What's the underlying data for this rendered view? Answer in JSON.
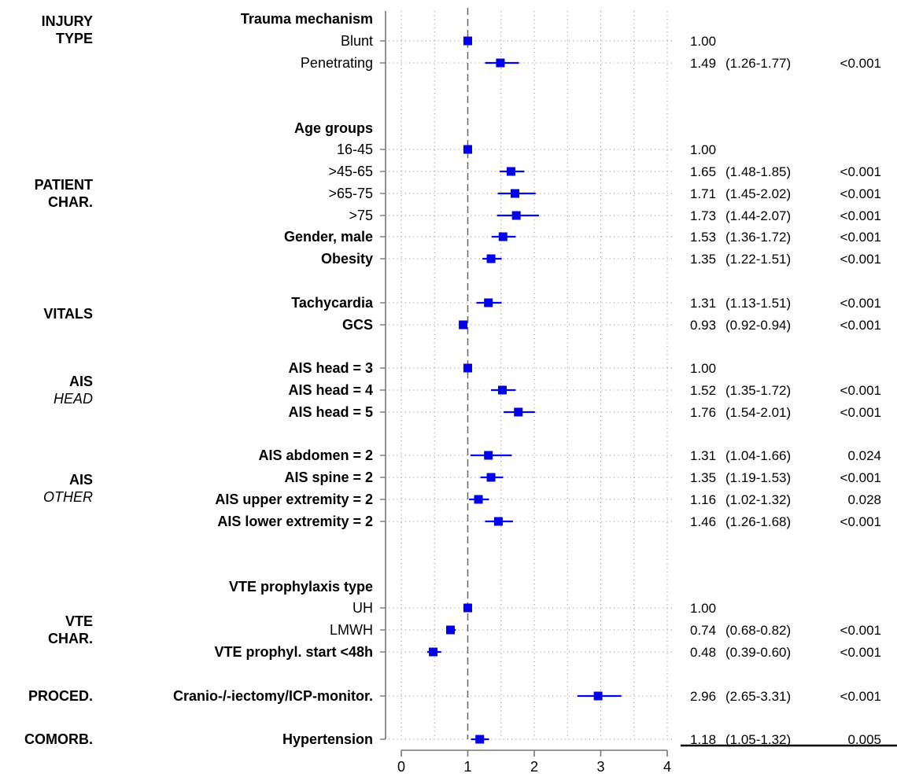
{
  "chart_data": {
    "type": "forest",
    "title": "",
    "xlabel": "",
    "ylabel": "",
    "xlim": [
      0,
      4
    ],
    "xticks": [
      "0",
      "1",
      "2",
      "3",
      "4"
    ],
    "reference_line": 1,
    "grid": "dotted",
    "marker_color": "#0000ee",
    "groups": [
      {
        "lines": [
          {
            "text": "INJURY",
            "italic": false
          },
          {
            "text": "TYPE",
            "italic": false
          }
        ],
        "row_span": [
          0,
          1
        ]
      },
      {
        "lines": [
          {
            "text": "PATIENT",
            "italic": false
          },
          {
            "text": "CHAR.",
            "italic": false
          }
        ],
        "row_span": [
          3,
          9
        ]
      },
      {
        "lines": [
          {
            "text": "VITALS",
            "italic": false
          }
        ],
        "row_span": [
          10,
          11
        ]
      },
      {
        "lines": [
          {
            "text": "AIS",
            "italic": false
          },
          {
            "text": "HEAD",
            "italic": true
          }
        ],
        "row_span": [
          12,
          14
        ]
      },
      {
        "lines": [
          {
            "text": "AIS",
            "italic": false
          },
          {
            "text": "OTHER",
            "italic": true
          }
        ],
        "row_span": [
          15,
          18
        ]
      },
      {
        "lines": [
          {
            "text": "VTE",
            "italic": false
          },
          {
            "text": "CHAR.",
            "italic": false
          }
        ],
        "row_span": [
          20,
          22
        ]
      },
      {
        "lines": [
          {
            "text": "PROCED.",
            "italic": false
          }
        ],
        "row_span": [
          23,
          23
        ]
      },
      {
        "lines": [
          {
            "text": "COMORB.",
            "italic": false
          }
        ],
        "row_span": [
          24,
          24
        ]
      }
    ],
    "rows": [
      {
        "label": "Trauma mechanism",
        "bold": true,
        "or": null,
        "lo": null,
        "hi": null,
        "or_text": "",
        "ci_text": "",
        "p_text": ""
      },
      {
        "label": "Blunt",
        "bold": false,
        "or": 1.0,
        "lo": null,
        "hi": null,
        "or_text": "1.00",
        "ci_text": "",
        "p_text": ""
      },
      {
        "label": "Penetrating",
        "bold": false,
        "or": 1.49,
        "lo": 1.26,
        "hi": 1.77,
        "or_text": "1.49",
        "ci_text": "(1.26-1.77)",
        "p_text": "<0.001"
      },
      {
        "label": "Age groups",
        "bold": true,
        "or": null,
        "lo": null,
        "hi": null,
        "or_text": "",
        "ci_text": "",
        "p_text": ""
      },
      {
        "label": "16-45",
        "bold": false,
        "or": 1.0,
        "lo": null,
        "hi": null,
        "or_text": "1.00",
        "ci_text": "",
        "p_text": ""
      },
      {
        "label": ">45-65",
        "bold": false,
        "or": 1.65,
        "lo": 1.48,
        "hi": 1.85,
        "or_text": "1.65",
        "ci_text": "(1.48-1.85)",
        "p_text": "<0.001"
      },
      {
        "label": ">65-75",
        "bold": false,
        "or": 1.71,
        "lo": 1.45,
        "hi": 2.02,
        "or_text": "1.71",
        "ci_text": "(1.45-2.02)",
        "p_text": "<0.001"
      },
      {
        "label": ">75",
        "bold": false,
        "or": 1.73,
        "lo": 1.44,
        "hi": 2.07,
        "or_text": "1.73",
        "ci_text": "(1.44-2.07)",
        "p_text": "<0.001"
      },
      {
        "label": "Gender, male",
        "bold": true,
        "or": 1.53,
        "lo": 1.36,
        "hi": 1.72,
        "or_text": "1.53",
        "ci_text": "(1.36-1.72)",
        "p_text": "<0.001"
      },
      {
        "label": "Obesity",
        "bold": true,
        "or": 1.35,
        "lo": 1.22,
        "hi": 1.51,
        "or_text": "1.35",
        "ci_text": "(1.22-1.51)",
        "p_text": "<0.001"
      },
      {
        "label": "Tachycardia",
        "bold": true,
        "or": 1.31,
        "lo": 1.13,
        "hi": 1.51,
        "or_text": "1.31",
        "ci_text": "(1.13-1.51)",
        "p_text": "<0.001"
      },
      {
        "label": "GCS",
        "bold": true,
        "or": 0.93,
        "lo": 0.92,
        "hi": 0.94,
        "or_text": "0.93",
        "ci_text": "(0.92-0.94)",
        "p_text": "<0.001"
      },
      {
        "label": "AIS head = 3",
        "bold": true,
        "or": 1.0,
        "lo": null,
        "hi": null,
        "or_text": "1.00",
        "ci_text": "",
        "p_text": ""
      },
      {
        "label": "AIS head = 4",
        "bold": true,
        "or": 1.52,
        "lo": 1.35,
        "hi": 1.72,
        "or_text": "1.52",
        "ci_text": "(1.35-1.72)",
        "p_text": "<0.001"
      },
      {
        "label": "AIS head = 5",
        "bold": true,
        "or": 1.76,
        "lo": 1.54,
        "hi": 2.01,
        "or_text": "1.76",
        "ci_text": "(1.54-2.01)",
        "p_text": "<0.001"
      },
      {
        "label": "AIS abdomen = 2",
        "bold": true,
        "or": 1.31,
        "lo": 1.04,
        "hi": 1.66,
        "or_text": "1.31",
        "ci_text": "(1.04-1.66)",
        "p_text": "0.024"
      },
      {
        "label": "AIS spine = 2",
        "bold": true,
        "or": 1.35,
        "lo": 1.19,
        "hi": 1.53,
        "or_text": "1.35",
        "ci_text": "(1.19-1.53)",
        "p_text": "<0.001"
      },
      {
        "label": "AIS upper extremity = 2",
        "bold": true,
        "or": 1.16,
        "lo": 1.02,
        "hi": 1.32,
        "or_text": "1.16",
        "ci_text": "(1.02-1.32)",
        "p_text": "0.028"
      },
      {
        "label": "AIS lower extremity = 2",
        "bold": true,
        "or": 1.46,
        "lo": 1.26,
        "hi": 1.68,
        "or_text": "1.46",
        "ci_text": "(1.26-1.68)",
        "p_text": "<0.001"
      },
      {
        "label": "VTE prophylaxis type",
        "bold": true,
        "or": null,
        "lo": null,
        "hi": null,
        "or_text": "",
        "ci_text": "",
        "p_text": ""
      },
      {
        "label": "UH",
        "bold": false,
        "or": 1.0,
        "lo": null,
        "hi": null,
        "or_text": "1.00",
        "ci_text": "",
        "p_text": ""
      },
      {
        "label": "LMWH",
        "bold": false,
        "or": 0.74,
        "lo": 0.68,
        "hi": 0.82,
        "or_text": "0.74",
        "ci_text": "(0.68-0.82)",
        "p_text": "<0.001"
      },
      {
        "label": "VTE prophyl. start <48h",
        "bold": true,
        "or": 0.48,
        "lo": 0.39,
        "hi": 0.6,
        "or_text": "0.48",
        "ci_text": "(0.39-0.60)",
        "p_text": "<0.001"
      },
      {
        "label": "Cranio-/-iectomy/ICP-monitor.",
        "bold": true,
        "or": 2.96,
        "lo": 2.65,
        "hi": 3.31,
        "or_text": "2.96",
        "ci_text": "(2.65-3.31)",
        "p_text": "<0.001"
      },
      {
        "label": "Hypertension",
        "bold": true,
        "or": 1.18,
        "lo": 1.05,
        "hi": 1.32,
        "or_text": "1.18",
        "ci_text": "(1.05-1.32)",
        "p_text": "0.005"
      }
    ]
  }
}
